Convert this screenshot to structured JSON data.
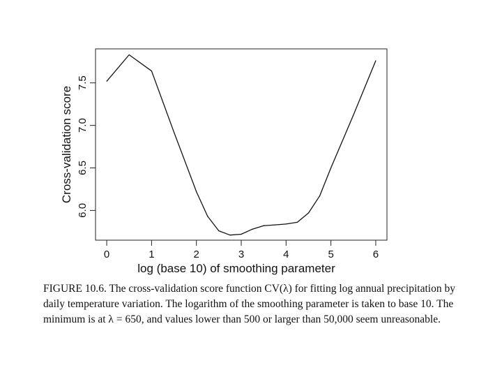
{
  "chart_data": {
    "type": "line",
    "title": "",
    "xlabel": "log (base 10) of smoothing parameter",
    "ylabel": "Cross-validation score",
    "xlim": [
      -0.25,
      6.25
    ],
    "ylim": [
      5.65,
      7.9
    ],
    "x_ticks": [
      0,
      1,
      2,
      3,
      4,
      5,
      6
    ],
    "x_tick_labels": [
      "0",
      "1",
      "2",
      "3",
      "4",
      "5",
      "6"
    ],
    "y_ticks": [
      6.0,
      6.5,
      7.0,
      7.5
    ],
    "y_tick_labels": [
      "6.0",
      "6.5",
      "7.0",
      "7.5"
    ],
    "grid": false,
    "series": [
      {
        "name": "CV score",
        "x": [
          0,
          0.5,
          1,
          1.5,
          2,
          2.25,
          2.5,
          2.75,
          3,
          3.25,
          3.5,
          3.75,
          4,
          4.25,
          4.5,
          4.75,
          5,
          5.5,
          6
        ],
        "y": [
          7.52,
          7.83,
          7.64,
          6.92,
          6.22,
          5.93,
          5.76,
          5.71,
          5.72,
          5.78,
          5.82,
          5.83,
          5.84,
          5.86,
          5.97,
          6.17,
          6.5,
          7.12,
          7.76
        ]
      }
    ]
  },
  "caption": {
    "text": "FIGURE 10.6. The cross-validation score function CV(λ) for fitting log annual precipitation by daily temperature variation. The logarithm of the smoothing parameter is taken to base 10. The minimum is at λ = 650, and values lower than 500 or larger than 50,000 seem unreasonable."
  }
}
